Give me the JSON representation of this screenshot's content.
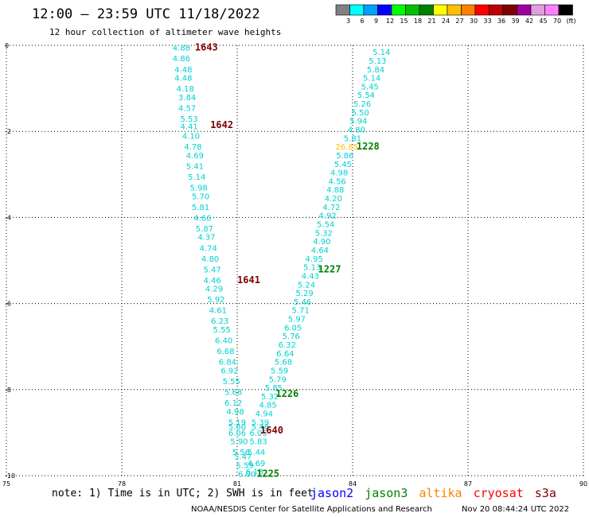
{
  "header": {
    "title": "12:00 – 23:59 UTC 11/18/2022",
    "subtitle": "12 hour collection of altimeter wave heights"
  },
  "colorbar": {
    "colors": [
      "#808080",
      "#00ffff",
      "#00a0ff",
      "#0000ff",
      "#00ff00",
      "#00c000",
      "#008000",
      "#ffff00",
      "#ffc000",
      "#ff8000",
      "#ff0000",
      "#c00000",
      "#800000",
      "#a000a0",
      "#e0a0e0",
      "#ff80ff",
      "#000000"
    ],
    "labels": [
      "3",
      "6",
      "9",
      "12",
      "15",
      "18",
      "21",
      "24",
      "27",
      "30",
      "33",
      "36",
      "39",
      "42",
      "45",
      "70",
      "(ft)"
    ]
  },
  "note": "note: 1) Time is in UTC; 2) SWH is in feet",
  "legend": [
    {
      "name": "jason2",
      "color": "#0000ff"
    },
    {
      "name": "jason3",
      "color": "#008000"
    },
    {
      "name": "altika",
      "color": "#ff8000"
    },
    {
      "name": "cryosat",
      "color": "#ff0000"
    },
    {
      "name": "s3a",
      "color": "#800000"
    }
  ],
  "footer": {
    "left": "NOAA/NESDIS Center for Satellite Applications and Research",
    "right": "Nov 20 08:44:24 UTC 2022"
  },
  "chart_data": {
    "type": "scatter",
    "xlim": [
      75,
      90
    ],
    "ylim": [
      -10,
      0
    ],
    "x_ticks": [
      75,
      78,
      81,
      84,
      87,
      90
    ],
    "x_tick_labels": [
      "75",
      "78",
      "81",
      "84",
      "87",
      "90"
    ],
    "y_ticks": [
      0,
      -2,
      -4,
      -6,
      -8,
      -10
    ],
    "y_tick_labels": [
      "0",
      "-2",
      "-4",
      "-6",
      "-8",
      "-10"
    ],
    "grid": true,
    "tracks": [
      {
        "satellite": "s3a",
        "color": "#800000",
        "text_color": "#00d0d0",
        "times": [
          {
            "label": "1643",
            "x": 80.2,
            "y": -0.05
          },
          {
            "label": "1642",
            "x": 80.6,
            "y": -1.85
          },
          {
            "label": "1641",
            "x": 81.3,
            "y": -5.45
          },
          {
            "label": "1640",
            "x": 81.9,
            "y": -8.95
          }
        ],
        "points": [
          {
            "x": 79.55,
            "y": -0.05,
            "v": "4.88"
          },
          {
            "x": 79.55,
            "y": -0.3,
            "v": "4.86"
          },
          {
            "x": 79.6,
            "y": -0.55,
            "v": "4.48"
          },
          {
            "x": 79.6,
            "y": -0.75,
            "v": "4.48"
          },
          {
            "x": 79.65,
            "y": -1.0,
            "v": "4.18"
          },
          {
            "x": 79.7,
            "y": -1.2,
            "v": "3.84"
          },
          {
            "x": 79.7,
            "y": -1.45,
            "v": "4.57"
          },
          {
            "x": 79.75,
            "y": -1.7,
            "v": "5.53"
          },
          {
            "x": 79.75,
            "y": -1.88,
            "v": "4.41"
          },
          {
            "x": 79.8,
            "y": -2.1,
            "v": "4.10"
          },
          {
            "x": 79.85,
            "y": -2.35,
            "v": "4.78"
          },
          {
            "x": 79.9,
            "y": -2.55,
            "v": "4.69"
          },
          {
            "x": 79.9,
            "y": -2.8,
            "v": "5.41"
          },
          {
            "x": 79.95,
            "y": -3.05,
            "v": "5.14"
          },
          {
            "x": 80.0,
            "y": -3.3,
            "v": "5.98"
          },
          {
            "x": 80.05,
            "y": -3.5,
            "v": "5.70"
          },
          {
            "x": 80.05,
            "y": -3.75,
            "v": "5.81"
          },
          {
            "x": 80.1,
            "y": -4.0,
            "v": "4.66"
          },
          {
            "x": 80.15,
            "y": -4.25,
            "v": "5.87"
          },
          {
            "x": 80.2,
            "y": -4.45,
            "v": "4.37"
          },
          {
            "x": 80.25,
            "y": -4.7,
            "v": "4.74"
          },
          {
            "x": 80.3,
            "y": -4.95,
            "v": "4.80"
          },
          {
            "x": 80.35,
            "y": -5.2,
            "v": "5.47"
          },
          {
            "x": 80.35,
            "y": -5.45,
            "v": "4.46"
          },
          {
            "x": 80.4,
            "y": -5.65,
            "v": "4.29"
          },
          {
            "x": 80.45,
            "y": -5.9,
            "v": "5.92"
          },
          {
            "x": 80.5,
            "y": -6.15,
            "v": "4.61"
          },
          {
            "x": 80.55,
            "y": -6.4,
            "v": "6.23"
          },
          {
            "x": 80.6,
            "y": -6.6,
            "v": "5.55"
          },
          {
            "x": 80.65,
            "y": -6.85,
            "v": "6.40"
          },
          {
            "x": 80.7,
            "y": -7.1,
            "v": "6.68"
          },
          {
            "x": 80.75,
            "y": -7.35,
            "v": "6.84"
          },
          {
            "x": 80.8,
            "y": -7.55,
            "v": "6.92"
          },
          {
            "x": 80.85,
            "y": -7.8,
            "v": "5.55"
          },
          {
            "x": 80.9,
            "y": -8.05,
            "v": "5.68"
          },
          {
            "x": 80.9,
            "y": -8.3,
            "v": "6.12"
          },
          {
            "x": 80.95,
            "y": -8.5,
            "v": "4.98"
          },
          {
            "x": 81.0,
            "y": -8.75,
            "v": "5.19"
          },
          {
            "x": 81.0,
            "y": -8.85,
            "v": "5.60"
          },
          {
            "x": 81.0,
            "y": -9.0,
            "v": "6.06"
          },
          {
            "x": 81.05,
            "y": -9.2,
            "v": "5.90"
          },
          {
            "x": 81.1,
            "y": -9.45,
            "v": "5.56"
          },
          {
            "x": 81.15,
            "y": -9.55,
            "v": "5.47"
          },
          {
            "x": 81.2,
            "y": -9.75,
            "v": "5.59"
          },
          {
            "x": 81.25,
            "y": -9.95,
            "v": "6.00"
          }
        ]
      },
      {
        "satellite": "jason3",
        "color": "#008000",
        "text_color": "#00d0d0",
        "times": [
          {
            "label": "1228",
            "x": 84.4,
            "y": -2.35
          },
          {
            "label": "1227",
            "x": 83.4,
            "y": -5.2
          },
          {
            "label": "1226",
            "x": 82.3,
            "y": -8.1
          },
          {
            "label": "1225",
            "x": 81.8,
            "y": -9.95
          }
        ],
        "points": [
          {
            "x": 84.75,
            "y": -0.15,
            "v": "5.14"
          },
          {
            "x": 84.65,
            "y": -0.35,
            "v": "5.13"
          },
          {
            "x": 84.6,
            "y": -0.55,
            "v": "5.84"
          },
          {
            "x": 84.5,
            "y": -0.75,
            "v": "5.14"
          },
          {
            "x": 84.45,
            "y": -0.95,
            "v": "5.45"
          },
          {
            "x": 84.35,
            "y": -1.15,
            "v": "5.54"
          },
          {
            "x": 84.25,
            "y": -1.35,
            "v": "5.26"
          },
          {
            "x": 84.2,
            "y": -1.55,
            "v": "5.50"
          },
          {
            "x": 84.15,
            "y": -1.75,
            "v": "5.94"
          },
          {
            "x": 84.1,
            "y": -1.95,
            "v": "4.80"
          },
          {
            "x": 84.0,
            "y": -2.15,
            "v": "5.81"
          },
          {
            "x": 83.85,
            "y": -2.35,
            "v": "26.85",
            "color": "#ffc000"
          },
          {
            "x": 83.8,
            "y": -2.55,
            "v": "5.86"
          },
          {
            "x": 83.75,
            "y": -2.75,
            "v": "5.45"
          },
          {
            "x": 83.65,
            "y": -2.95,
            "v": "4.98"
          },
          {
            "x": 83.6,
            "y": -3.15,
            "v": "4.56"
          },
          {
            "x": 83.55,
            "y": -3.35,
            "v": "4.88"
          },
          {
            "x": 83.5,
            "y": -3.55,
            "v": "4.20"
          },
          {
            "x": 83.45,
            "y": -3.75,
            "v": "4.72"
          },
          {
            "x": 83.35,
            "y": -3.95,
            "v": "4.92"
          },
          {
            "x": 83.3,
            "y": -4.15,
            "v": "5.54"
          },
          {
            "x": 83.25,
            "y": -4.35,
            "v": "5.32"
          },
          {
            "x": 83.2,
            "y": -4.55,
            "v": "4.90"
          },
          {
            "x": 83.15,
            "y": -4.75,
            "v": "4.64"
          },
          {
            "x": 83.0,
            "y": -4.95,
            "v": "4.95"
          },
          {
            "x": 82.95,
            "y": -5.15,
            "v": "5.13"
          },
          {
            "x": 82.9,
            "y": -5.35,
            "v": "4.43"
          },
          {
            "x": 82.8,
            "y": -5.55,
            "v": "5.24"
          },
          {
            "x": 82.75,
            "y": -5.75,
            "v": "5.29"
          },
          {
            "x": 82.7,
            "y": -5.95,
            "v": "5.46"
          },
          {
            "x": 82.65,
            "y": -6.15,
            "v": "5.71"
          },
          {
            "x": 82.55,
            "y": -6.35,
            "v": "5.97"
          },
          {
            "x": 82.45,
            "y": -6.55,
            "v": "6.05"
          },
          {
            "x": 82.4,
            "y": -6.75,
            "v": "5.76"
          },
          {
            "x": 82.3,
            "y": -6.95,
            "v": "6.32"
          },
          {
            "x": 82.25,
            "y": -7.15,
            "v": "6.64"
          },
          {
            "x": 82.2,
            "y": -7.35,
            "v": "5.68"
          },
          {
            "x": 82.1,
            "y": -7.55,
            "v": "5.59"
          },
          {
            "x": 82.05,
            "y": -7.75,
            "v": "5.79"
          },
          {
            "x": 81.95,
            "y": -7.95,
            "v": "5.85"
          },
          {
            "x": 81.85,
            "y": -8.15,
            "v": "5.32"
          },
          {
            "x": 81.8,
            "y": -8.35,
            "v": "4.85"
          },
          {
            "x": 81.7,
            "y": -8.55,
            "v": "4.94"
          },
          {
            "x": 81.6,
            "y": -8.75,
            "v": "5.39"
          },
          {
            "x": 81.6,
            "y": -8.85,
            "v": "5.48"
          },
          {
            "x": 81.55,
            "y": -9.0,
            "v": "6.05"
          },
          {
            "x": 81.55,
            "y": -9.2,
            "v": "5.83"
          },
          {
            "x": 81.5,
            "y": -9.45,
            "v": "5.44"
          },
          {
            "x": 81.5,
            "y": -9.7,
            "v": "4.69"
          },
          {
            "x": 81.45,
            "y": -9.9,
            "v": "6.13"
          }
        ]
      }
    ]
  }
}
